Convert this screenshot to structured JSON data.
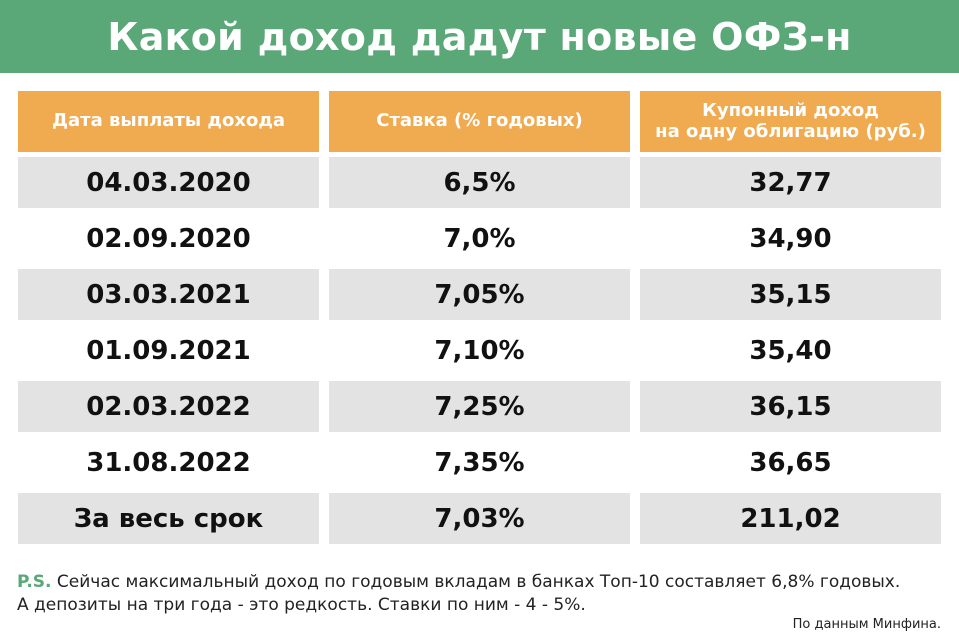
{
  "title": "Какой доход дадут новые ОФЗ-н",
  "table": {
    "headers": [
      "Дата выплаты дохода",
      "Ставка (% годовых)",
      "Купонный доход\nна одну облигацию (руб.)"
    ],
    "rows": [
      [
        "04.03.2020",
        "6,5%",
        "32,77"
      ],
      [
        "02.09.2020",
        "7,0%",
        "34,90"
      ],
      [
        "03.03.2021",
        "7,05%",
        "35,15"
      ],
      [
        "01.09.2021",
        "7,10%",
        "35,40"
      ],
      [
        "02.03.2022",
        "7,25%",
        "36,15"
      ],
      [
        "31.08.2022",
        "7,35%",
        "36,65"
      ],
      [
        "За весь срок",
        "7,03%",
        "211,02"
      ]
    ]
  },
  "footnote": {
    "label": "P.S.",
    "line1": "Сейчас максимальный доход по годовым вкладам в банках Топ-10 составляет 6,8% годовых.",
    "line2": "А депозиты на три года - это редкость. Ставки по ним - 4 - 5%."
  },
  "source": "По данным Минфина.",
  "colors": {
    "header_bg": "#5aa777",
    "table_header_bg": "#f0aa50",
    "row_shade": "#e3e3e3"
  }
}
